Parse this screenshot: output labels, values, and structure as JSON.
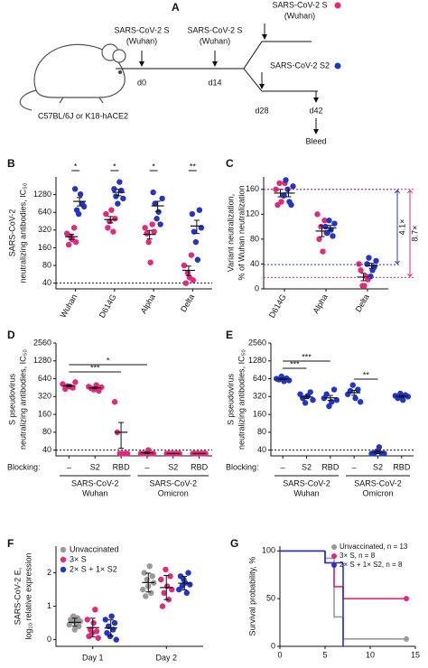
{
  "panel_a": {
    "panel": "A",
    "mouse_label": "C57BL/6J or K18-hACE2",
    "doses": [
      [
        "SARS-CoV-2 S",
        "(Wuhan)"
      ],
      [
        "SARS-CoV-2 S",
        "(Wuhan)"
      ],
      [
        "SARS-CoV-2 S",
        "(Wuhan)"
      ],
      [
        "SARS-CoV-2 S2"
      ]
    ],
    "days": [
      "d0",
      "d14",
      "d28",
      "d42"
    ],
    "endpoint": "Bleed"
  },
  "chart_data": [
    {
      "type": "dotplot",
      "panel": "B",
      "ylabel": [
        "SARS-CoV-2",
        "neutralizing antibodies, IC₅₀"
      ],
      "log": true,
      "ylim": [
        32,
        2560
      ],
      "yticks": [
        40,
        80,
        160,
        320,
        640,
        1280
      ],
      "threshold": 40,
      "categories": [
        "Wuhan",
        "D614G",
        "Alpha",
        "Delta"
      ],
      "series": [
        {
          "color": "#e4287a",
          "points": [
            [
              280,
              180,
              250,
              220,
              350,
              200
            ],
            [
              600,
              350,
              450,
              700,
              300,
              500
            ],
            [
              350,
              280,
              200,
              90,
              400,
              300
            ],
            [
              80,
              40,
              60,
              50,
              120,
              45
            ]
          ],
          "means": [
            247,
            483,
            270,
            66
          ],
          "sems": [
            25,
            60,
            45,
            12
          ]
        },
        {
          "color": "#2335c6",
          "points": [
            [
              1600,
              700,
              600,
              1300,
              900,
              800
            ],
            [
              1600,
              1200,
              900,
              2100,
              1500,
              1100
            ],
            [
              1400,
              900,
              500,
              650,
              400,
              1100
            ],
            [
              600,
              300,
              200,
              100,
              700,
              350
            ]
          ],
          "means": [
            983,
            1400,
            825,
            375
          ],
          "sems": [
            160,
            175,
            160,
            95
          ]
        }
      ],
      "significance": [
        "*",
        "*",
        "*",
        "**"
      ]
    },
    {
      "type": "dotplot",
      "panel": "C",
      "ylabel": [
        "Variant neutralization,",
        "% of Wuhan neutralization"
      ],
      "log": false,
      "ylim": [
        0,
        180
      ],
      "yticks": [
        0,
        40,
        80,
        120,
        160
      ],
      "categories": [
        "D614G",
        "Alpha",
        "Delta"
      ],
      "series": [
        {
          "color": "#e4287a",
          "points": [
            [
              160,
              135,
              170,
              140,
              150,
              170
            ],
            [
              120,
              80,
              100,
              60,
              110,
              90
            ],
            [
              40,
              30,
              5,
              5,
              20,
              15
            ]
          ],
          "means": [
            154,
            93,
            19
          ],
          "sems": [
            6,
            9,
            6
          ]
        },
        {
          "color": "#2335c6",
          "points": [
            [
              150,
              175,
              160,
              140,
              135,
              165
            ],
            [
              100,
              90,
              110,
              95,
              85,
              105
            ],
            [
              40,
              50,
              20,
              30,
              35,
              45
            ]
          ],
          "means": [
            154,
            98,
            37
          ],
          "sems": [
            6,
            4,
            4
          ]
        }
      ],
      "fold_changes": [
        {
          "label": "4.1×",
          "from": 160,
          "to": 39,
          "color": "#2335c6"
        },
        {
          "label": "8.7×",
          "from": 160,
          "to": 18.4,
          "color": "#e4287a"
        }
      ]
    },
    {
      "type": "dotplot",
      "panel": "D",
      "ylabel": [
        "S pseudovirus",
        "neutralizing antibodies, IC₅₀"
      ],
      "log": true,
      "ylim": [
        32,
        2560
      ],
      "yticks": [
        40,
        80,
        160,
        320,
        640,
        1280,
        2560
      ],
      "threshold": 40,
      "blocking_label": "Blocking:",
      "categories": [
        "–",
        "S2",
        "RBD",
        "–",
        "S2",
        "RBD"
      ],
      "groups": [
        [
          "SARS-CoV-2",
          "Wuhan"
        ],
        [
          "SARS-CoV-2",
          "Omicron"
        ]
      ],
      "series": [
        {
          "color": "#e4287a",
          "points": [
            [
              520,
              430,
              480,
              470,
              450,
              560
            ],
            [
              470,
              440,
              420,
              500,
              400,
              460
            ],
            [
              260,
              80,
              35,
              35,
              35,
              35
            ],
            [
              35,
              35,
              35,
              40,
              35,
              35
            ],
            [
              35,
              35,
              35,
              35,
              35,
              35
            ],
            [
              35,
              35,
              35,
              35,
              35,
              35
            ]
          ],
          "means": [
            485,
            448,
            80,
            36,
            35,
            35
          ],
          "sems": [
            19,
            15,
            37,
            1,
            0,
            0
          ]
        }
      ],
      "significance": [
        "***",
        "*"
      ]
    },
    {
      "type": "dotplot",
      "panel": "E",
      "ylabel": [
        "S pseudovirus",
        "neutralizing antibodies, IC₅₀"
      ],
      "log": true,
      "ylim": [
        32,
        2560
      ],
      "yticks": [
        40,
        80,
        160,
        320,
        640,
        1280,
        2560
      ],
      "threshold": 40,
      "blocking_label": "Blocking:",
      "categories": [
        "–",
        "S2",
        "RBD",
        "–",
        "S2",
        "RBD"
      ],
      "groups": [
        [
          "SARS-CoV-2",
          "Wuhan"
        ],
        [
          "SARS-CoV-2",
          "Omicron"
        ]
      ],
      "series": [
        {
          "color": "#2335c6",
          "points": [
            [
              640,
              620,
              700,
              580,
              650,
              600
            ],
            [
              350,
              300,
              250,
              330,
              380,
              280
            ],
            [
              300,
              350,
              220,
              260,
              420,
              280
            ],
            [
              350,
              400,
              500,
              300,
              420,
              260
            ],
            [
              35,
              35,
              38,
              45,
              35,
              35
            ],
            [
              330,
              300,
              360,
              280,
              340,
              320
            ]
          ],
          "means": [
            632,
            315,
            305,
            372,
            37,
            322
          ],
          "sems": [
            17,
            20,
            29,
            36,
            2,
            12
          ]
        }
      ],
      "significance": [
        "***",
        "***",
        "**"
      ]
    },
    {
      "type": "dotplot",
      "panel": "F",
      "ylabel": [
        "SARS-CoV-2 E,",
        "log₁₀ relative expression"
      ],
      "log": false,
      "ylim": [
        -0.2,
        2.8
      ],
      "yticks": [
        0,
        1,
        2
      ],
      "categories": [
        "Day 1",
        "Day 2"
      ],
      "series": [
        {
          "name": "Unvaccinated",
          "color": "#9a9a9a",
          "points": [
            [
              0.45,
              0.6,
              0.55,
              0.7,
              0.3,
              0.5,
              0.65,
              0.4,
              0.55
            ],
            [
              1.5,
              2.0,
              1.3,
              1.8,
              1.6,
              2.2,
              1.4,
              1.9,
              1.7
            ]
          ],
          "means": [
            0.52,
            1.71
          ],
          "sems": [
            0.12,
            0.28
          ]
        },
        {
          "name": "3× S",
          "color": "#e4287a",
          "points": [
            [
              0.6,
              0.1,
              0.3,
              0.2,
              0.5,
              0.9,
              0.25,
              0.05
            ],
            [
              1.8,
              1.0,
              1.4,
              2.1,
              1.6,
              1.2,
              1.9,
              1.5
            ]
          ],
          "means": [
            0.36,
            1.56
          ],
          "sems": [
            0.28,
            0.36
          ]
        },
        {
          "name": "2× S + 1× S2",
          "color": "#2335c6",
          "points": [
            [
              0.6,
              0.2,
              0.4,
              0.1,
              0.7,
              0.3,
              0.5,
              0.0
            ],
            [
              1.5,
              1.9,
              1.6,
              1.8,
              1.7,
              1.4,
              2.0,
              1.65
            ]
          ],
          "means": [
            0.35,
            1.69
          ],
          "sems": [
            0.24,
            0.2
          ]
        }
      ]
    },
    {
      "type": "survival",
      "panel": "G",
      "ylabel": [
        "Survival probability, %"
      ],
      "xlim": [
        0,
        15
      ],
      "xticks": [
        0,
        5,
        10,
        15
      ],
      "ylim": [
        0,
        105
      ],
      "yticks": [
        0,
        50,
        100
      ],
      "series": [
        {
          "name": "Unvaccinated, n = 13",
          "color": "#9a9a9a",
          "x": [
            0,
            5,
            6,
            7,
            14
          ],
          "y": [
            100,
            92.3,
            30.8,
            7.7,
            7.7
          ],
          "end_marker": true
        },
        {
          "name": "3× S, n = 8",
          "color": "#e4287a",
          "x": [
            0,
            5,
            6,
            7,
            14
          ],
          "y": [
            100,
            87.5,
            62.5,
            50,
            50
          ],
          "end_marker": true
        },
        {
          "name": "2× S + 1× S2, n = 8",
          "color": "#2335c6",
          "x": [
            0,
            5,
            7
          ],
          "y": [
            100,
            87.5,
            0
          ],
          "end_marker": false
        }
      ]
    }
  ]
}
